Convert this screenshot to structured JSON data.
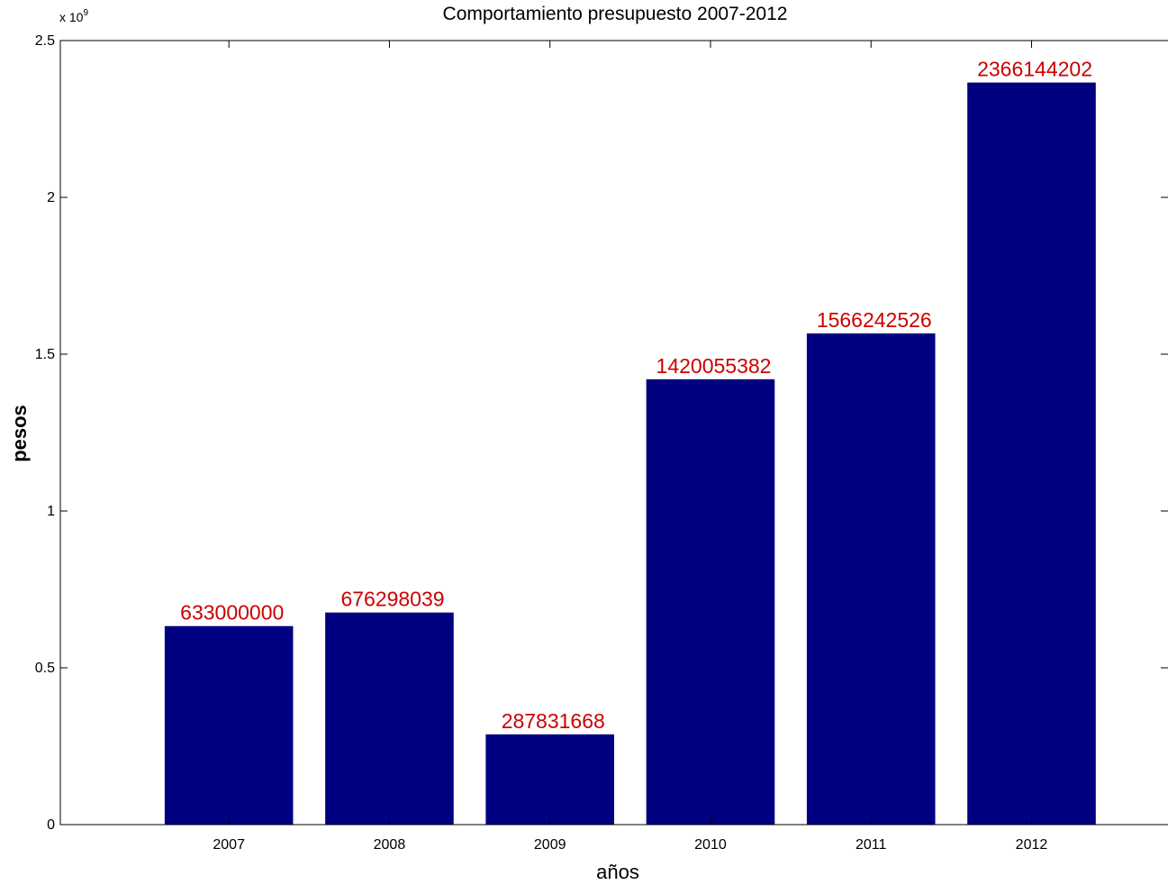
{
  "chart_data": {
    "type": "bar",
    "title": "Comportamiento presupuesto 2007-2012",
    "xlabel": "años",
    "ylabel": "pesos",
    "categories": [
      "2007",
      "2008",
      "2009",
      "2010",
      "2011",
      "2012"
    ],
    "values": [
      633000000,
      676298039,
      287831668,
      1420055382,
      1566242526,
      2366144202
    ],
    "data_labels": [
      "633000000",
      "676298039",
      "287831668",
      "1420055382",
      "1566242526",
      "2366144202"
    ],
    "ylim": [
      0,
      2500000000
    ],
    "yticks": [
      0,
      0.5,
      1,
      1.5,
      2,
      2.5
    ],
    "ytick_labels": [
      "0",
      "0.5",
      "1",
      "1.5",
      "2",
      "2.5"
    ],
    "y_exponent_label": "x 10",
    "y_exponent_power": "9",
    "grid": false,
    "bar_color": "#000080",
    "data_label_color": "#cc0000"
  }
}
